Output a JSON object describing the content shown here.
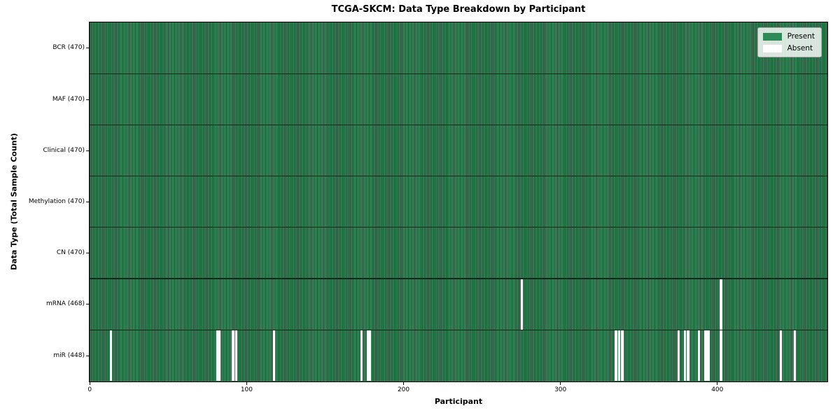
{
  "chart_data": {
    "type": "heatmap",
    "title": "TCGA-SKCM: Data Type Breakdown by Participant",
    "xlabel": "Participant",
    "ylabel": "Data Type (Total Sample Count)",
    "x_ticks": [
      0,
      100,
      200,
      300,
      400
    ],
    "x_range": [
      0,
      470
    ],
    "n_participants": 470,
    "grid": false,
    "legend_position": "upper right",
    "rows": [
      {
        "label": "BCR (470)",
        "data_type": "BCR",
        "present_count": 470,
        "absent_participants": []
      },
      {
        "label": "MAF (470)",
        "data_type": "MAF",
        "present_count": 470,
        "absent_participants": []
      },
      {
        "label": "Clinical (470)",
        "data_type": "Clinical",
        "present_count": 470,
        "absent_participants": []
      },
      {
        "label": "Methylation (470)",
        "data_type": "Methylation",
        "present_count": 470,
        "absent_participants": []
      },
      {
        "label": "CN (470)",
        "data_type": "CN",
        "present_count": 470,
        "absent_participants": []
      },
      {
        "label": "mRNA (468)",
        "data_type": "mRNA",
        "present_count": 468,
        "absent_participants": [
          275,
          402
        ]
      },
      {
        "label": "miR (448)",
        "data_type": "miR",
        "present_count": 448,
        "absent_participants": [
          13,
          81,
          82,
          91,
          93,
          117,
          173,
          177,
          178,
          335,
          337,
          339,
          375,
          379,
          381,
          388,
          392,
          393,
          394,
          402,
          440,
          449
        ]
      }
    ],
    "legend": [
      {
        "label": "Present",
        "color": "#2e8b57"
      },
      {
        "label": "Absent",
        "color": "#ffffff"
      }
    ],
    "colors": {
      "present_fill": "#35895a",
      "bar_edge": "#1e5134",
      "absent_fill": "#ffffff",
      "row_separator": "#10281b",
      "spine": "#000000",
      "legend_background": "rgba(255,255,255,0.82)",
      "legend_border": "#a8a8a8"
    }
  }
}
